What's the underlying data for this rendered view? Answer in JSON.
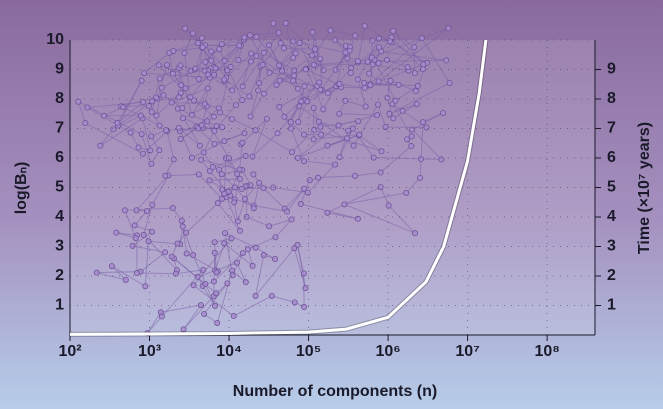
{
  "chart_data": {
    "type": "line",
    "x_label": "Number of components (n)",
    "y_label": "log(Bₙ)",
    "y2_label": "Time (×10⁷ years)",
    "x": [
      100,
      10000,
      100000,
      300000,
      1000000,
      3000000,
      5000000,
      10000000,
      14000000,
      17000000
    ],
    "values": [
      0.02,
      0.05,
      0.1,
      0.2,
      0.6,
      1.8,
      3,
      5.9,
      8.2,
      10
    ],
    "color": "#ffffff",
    "xscale": "log",
    "xlim": [
      100,
      400000000
    ],
    "xticks": [
      {
        "value": 100,
        "label": "10²"
      },
      {
        "value": 1000,
        "label": "10³"
      },
      {
        "value": 10000,
        "label": "10⁴"
      },
      {
        "value": 100000,
        "label": "10⁵"
      },
      {
        "value": 1000000,
        "label": "10⁶"
      },
      {
        "value": 10000000,
        "label": "10⁷"
      },
      {
        "value": 100000000,
        "label": "10⁸"
      }
    ],
    "ylim": [
      0,
      10
    ],
    "yticks": [
      1,
      2,
      3,
      4,
      5,
      6,
      7,
      8,
      9,
      10
    ],
    "y2lim": [
      0,
      10
    ],
    "y2ticks": [
      1,
      2,
      3,
      4,
      5,
      6,
      7,
      8,
      9
    ],
    "grid": true
  }
}
